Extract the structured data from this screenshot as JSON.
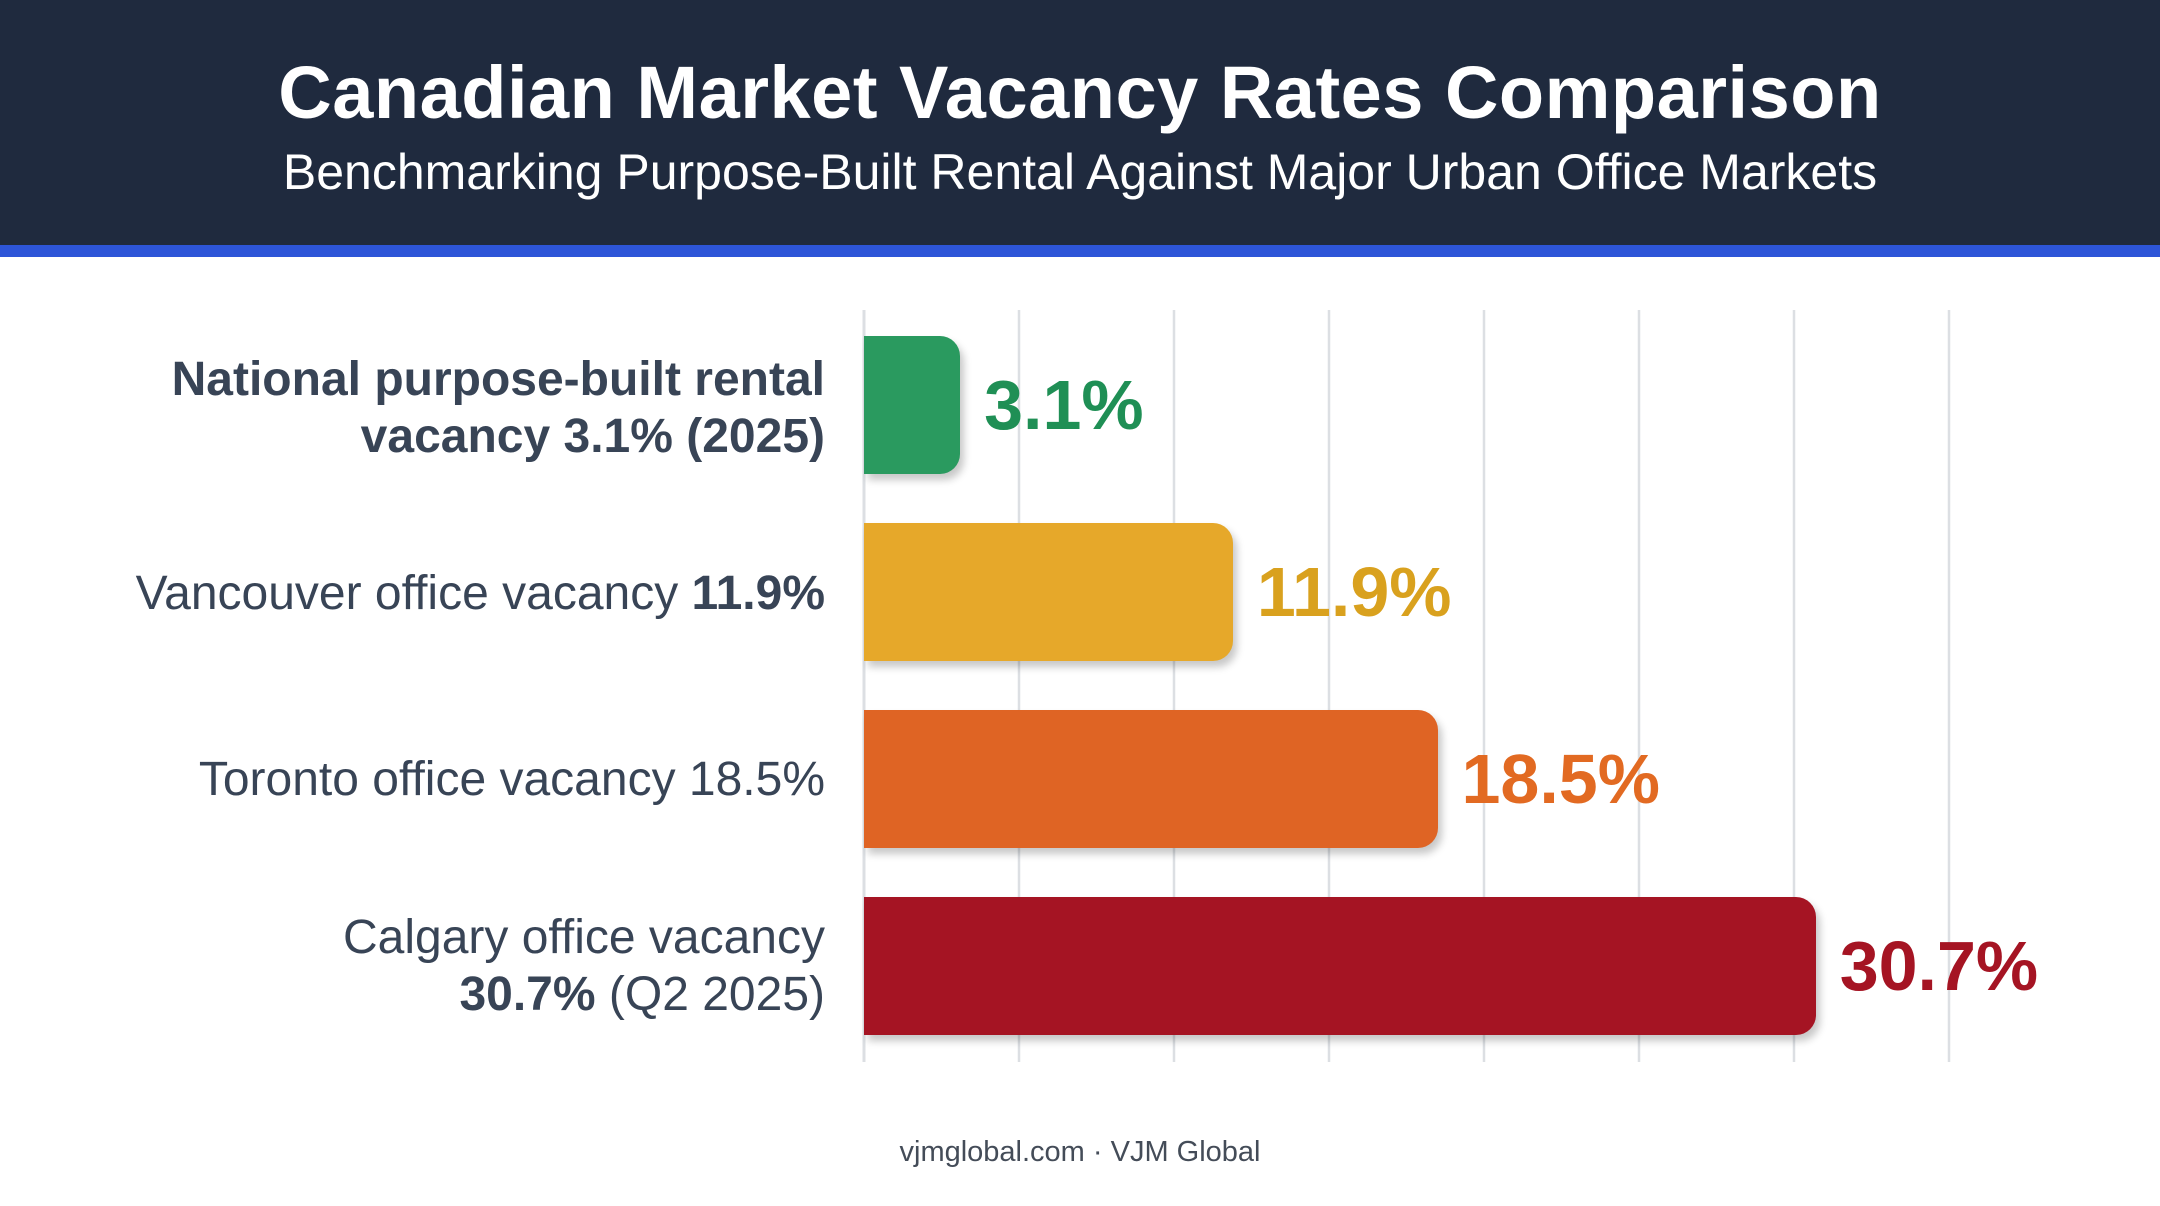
{
  "header": {
    "title": "Canadian Market Vacancy Rates Comparison",
    "subtitle": "Benchmarking Purpose-Built Rental Against Major Urban Office Markets"
  },
  "chart_data": {
    "type": "bar",
    "orientation": "horizontal",
    "title": "Canadian Market Vacancy Rates Comparison",
    "subtitle": "Benchmarking Purpose-Built Rental Against Major Urban Office Markets",
    "xlim": [
      0,
      35
    ],
    "grid": true,
    "categories": [
      {
        "id": "national-rental",
        "label_parts": [
          {
            "text": "National purpose-built rental",
            "bold": true
          },
          {
            "text": "vacancy 3.1% (2025)",
            "bold": true,
            "newline": true
          }
        ],
        "value": 3.1,
        "value_label": "3.1%",
        "color": "#2a9a5f",
        "label_color": "#1f8f55"
      },
      {
        "id": "vancouver-office",
        "label_parts": [
          {
            "text": "Vancouver office vacancy ",
            "bold": false
          },
          {
            "text": "11.9%",
            "bold": true
          }
        ],
        "value": 11.9,
        "value_label": "11.9%",
        "color": "#e6a82a",
        "label_color": "#d9a11e"
      },
      {
        "id": "toronto-office",
        "label_parts": [
          {
            "text": "Toronto office vacancy 18.5%",
            "bold": false
          }
        ],
        "value": 18.5,
        "value_label": "18.5%",
        "color": "#df6424",
        "label_color": "#e26a22"
      },
      {
        "id": "calgary-office",
        "label_parts": [
          {
            "text": "Calgary office vacancy",
            "bold": false
          },
          {
            "text": "30.7%",
            "bold": true,
            "newline": true
          },
          {
            "text": " (Q2 2025)",
            "bold": false
          }
        ],
        "value": 30.7,
        "value_label": "30.7%",
        "color": "#a51423",
        "label_color": "#a51423"
      }
    ]
  },
  "footer": {
    "credit": "vjmglobal.com · VJM Global"
  }
}
